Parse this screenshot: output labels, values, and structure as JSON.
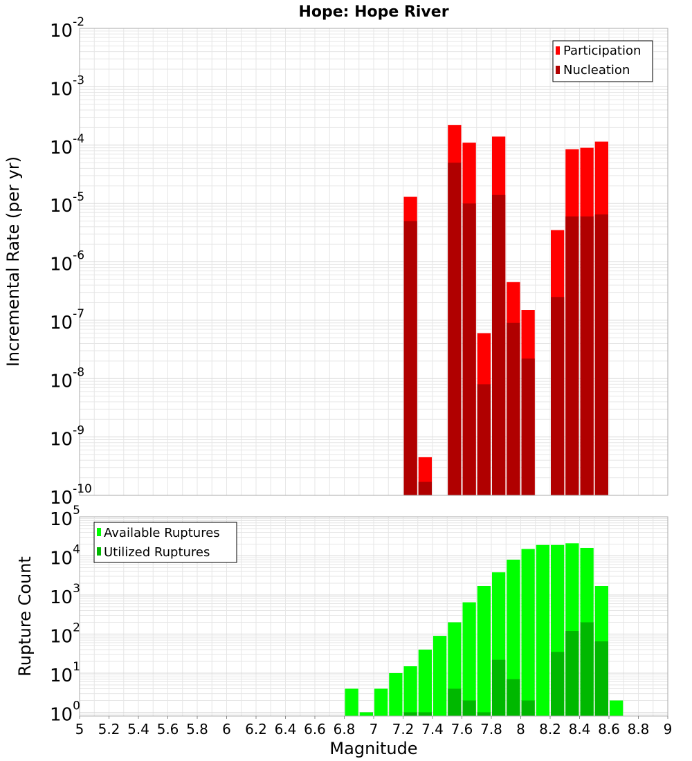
{
  "title": "Hope: Hope River",
  "colors": {
    "participation": "#ff0000",
    "nucleation": "#b00000",
    "available": "#00ff00",
    "utilized": "#00b800",
    "grid": "#e6e6e6",
    "frame": "#aaaaaa"
  },
  "chart_data": [
    {
      "type": "bar",
      "ylabel": "Incremental Rate (per yr)",
      "yscale": "log",
      "ylim": [
        1e-10,
        0.01
      ],
      "xlim": [
        5,
        9
      ],
      "grid": true,
      "legend_position": "top-right",
      "yticks": [
        {
          "base": "10",
          "exp": "-10"
        },
        {
          "base": "10",
          "exp": "-9"
        },
        {
          "base": "10",
          "exp": "-8"
        },
        {
          "base": "10",
          "exp": "-7"
        },
        {
          "base": "10",
          "exp": "-6"
        },
        {
          "base": "10",
          "exp": "-5"
        },
        {
          "base": "10",
          "exp": "-4"
        },
        {
          "base": "10",
          "exp": "-3"
        },
        {
          "base": "10",
          "exp": "-2"
        }
      ],
      "series": [
        {
          "name": "Participation",
          "points": [
            [
              7.25,
              1.3e-05
            ],
            [
              7.35,
              4.5e-10
            ],
            [
              7.55,
              0.00022
            ],
            [
              7.65,
              0.00011
            ],
            [
              7.75,
              6e-08
            ],
            [
              7.85,
              0.00014
            ],
            [
              7.95,
              4.5e-07
            ],
            [
              8.05,
              1.5e-07
            ],
            [
              8.25,
              3.5e-06
            ],
            [
              8.35,
              8.5e-05
            ],
            [
              8.45,
              9e-05
            ],
            [
              8.55,
              0.000115
            ]
          ]
        },
        {
          "name": "Nucleation",
          "points": [
            [
              7.25,
              5e-06
            ],
            [
              7.35,
              1.7e-10
            ],
            [
              7.55,
              5e-05
            ],
            [
              7.65,
              1e-05
            ],
            [
              7.75,
              8e-09
            ],
            [
              7.85,
              1.4e-05
            ],
            [
              7.95,
              9e-08
            ],
            [
              8.05,
              2.2e-08
            ],
            [
              8.25,
              2.5e-07
            ],
            [
              8.35,
              6e-06
            ],
            [
              8.45,
              6e-06
            ],
            [
              8.55,
              6.5e-06
            ]
          ]
        }
      ]
    },
    {
      "type": "bar",
      "xlabel": "Magnitude",
      "ylabel": "Rupture Count",
      "yscale": "log",
      "ylim": [
        0.8,
        100000.0
      ],
      "xlim": [
        5,
        9
      ],
      "grid": true,
      "legend_position": "top-left",
      "xticks": [
        "5",
        "5.2",
        "5.4",
        "5.6",
        "5.8",
        "6",
        "6.2",
        "6.4",
        "6.6",
        "6.8",
        "7",
        "7.2",
        "7.4",
        "7.6",
        "7.8",
        "8",
        "8.2",
        "8.4",
        "8.6",
        "8.8",
        "9"
      ],
      "yticks": [
        {
          "base": "10",
          "exp": "0"
        },
        {
          "base": "10",
          "exp": "1"
        },
        {
          "base": "10",
          "exp": "2"
        },
        {
          "base": "10",
          "exp": "3"
        },
        {
          "base": "10",
          "exp": "4"
        },
        {
          "base": "10",
          "exp": "5"
        }
      ],
      "series": [
        {
          "name": "Available Ruptures",
          "points": [
            [
              6.85,
              4
            ],
            [
              6.95,
              1
            ],
            [
              7.05,
              4
            ],
            [
              7.15,
              10
            ],
            [
              7.25,
              15
            ],
            [
              7.35,
              40
            ],
            [
              7.45,
              90
            ],
            [
              7.55,
              200
            ],
            [
              7.65,
              650
            ],
            [
              7.75,
              1700
            ],
            [
              7.85,
              3800
            ],
            [
              7.95,
              8000
            ],
            [
              8.05,
              15000
            ],
            [
              8.15,
              19000
            ],
            [
              8.25,
              19000
            ],
            [
              8.35,
              21000
            ],
            [
              8.45,
              16000
            ],
            [
              8.55,
              1700
            ],
            [
              8.65,
              2
            ]
          ]
        },
        {
          "name": "Utilized Ruptures",
          "points": [
            [
              7.25,
              1
            ],
            [
              7.35,
              1
            ],
            [
              7.55,
              4
            ],
            [
              7.65,
              2
            ],
            [
              7.75,
              1
            ],
            [
              7.85,
              22
            ],
            [
              7.95,
              7
            ],
            [
              8.05,
              2
            ],
            [
              8.25,
              35
            ],
            [
              8.35,
              120
            ],
            [
              8.45,
              200
            ],
            [
              8.55,
              65
            ]
          ]
        }
      ]
    }
  ]
}
